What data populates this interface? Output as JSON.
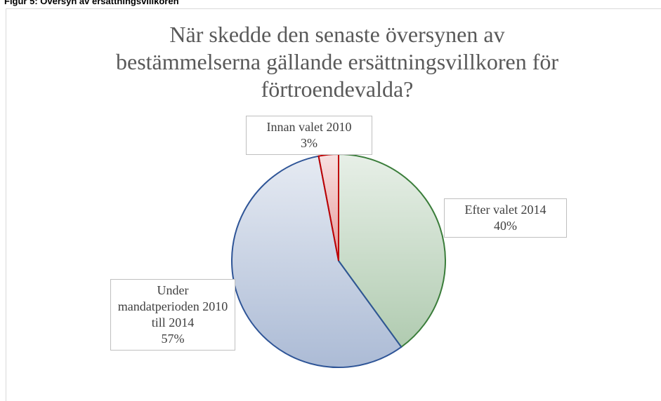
{
  "header": "Figur 5: Översyn av ersättningsvillkoren",
  "chart_data": {
    "type": "pie",
    "title": "När skedde den senaste översynen av bestämmelserna gällande ersättningsvillkoren för förtroendevalda?",
    "categories": [
      "Efter valet 2014",
      "Under mandatperioden 2010 till 2014",
      "Innan valet 2010"
    ],
    "values": [
      40,
      57,
      3
    ],
    "value_labels": [
      "40%",
      "57%",
      "3%"
    ],
    "colors": [
      "#3a7d3a",
      "#2f5597",
      "#c00000"
    ],
    "start_angle": 0,
    "direction": "clockwise"
  }
}
